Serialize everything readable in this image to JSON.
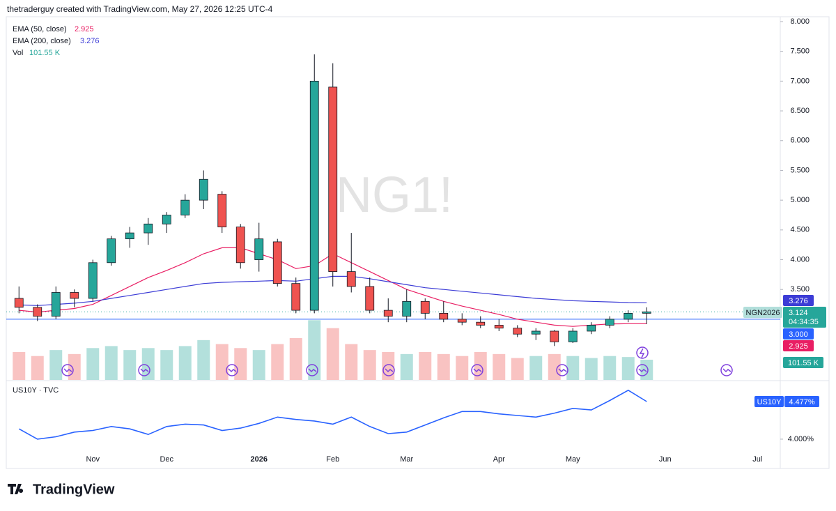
{
  "header": "thetraderguy created with TradingView.com, May 27, 2026 12:25 UTC-4",
  "brand": "TradingView",
  "chart_data": {
    "type": "candlestick",
    "watermark": "NG1!",
    "contract": "NGN2026",
    "countdown": "04:34:35",
    "categories": [
      null,
      null,
      null,
      null,
      "Nov",
      null,
      null,
      null,
      "Dec",
      null,
      null,
      null,
      null,
      "2026",
      null,
      null,
      null,
      "Feb",
      null,
      null,
      null,
      "Mar",
      null,
      null,
      null,
      null,
      "Apr",
      null,
      null,
      null,
      "May",
      null,
      null,
      null,
      null,
      "Jun",
      null,
      null,
      null,
      null,
      "Jul"
    ],
    "open": [
      3.35,
      3.2,
      3.05,
      3.45,
      3.35,
      3.95,
      4.35,
      4.45,
      4.6,
      4.75,
      5.0,
      5.1,
      4.55,
      4.0,
      4.3,
      3.6,
      3.15,
      6.9,
      3.8,
      3.55,
      3.15,
      3.05,
      3.3,
      3.1,
      3.0,
      2.95,
      2.9,
      2.85,
      2.75,
      2.8,
      2.62,
      2.8,
      2.9,
      3.0,
      3.1,
      null,
      null,
      null,
      null,
      null,
      null
    ],
    "high": [
      3.55,
      3.25,
      3.55,
      3.5,
      4.0,
      4.4,
      4.55,
      4.7,
      4.8,
      5.1,
      5.5,
      5.15,
      4.6,
      4.62,
      4.35,
      3.7,
      7.45,
      7.3,
      4.45,
      3.7,
      3.35,
      3.5,
      3.35,
      3.3,
      3.1,
      3.05,
      3.0,
      2.9,
      2.85,
      2.82,
      2.85,
      2.95,
      3.05,
      3.15,
      3.2,
      null,
      null,
      null,
      null,
      null,
      null
    ],
    "low": [
      3.1,
      2.97,
      3.0,
      3.2,
      3.3,
      3.9,
      4.2,
      4.25,
      4.45,
      4.7,
      4.85,
      4.45,
      3.85,
      3.8,
      3.55,
      3.1,
      3.1,
      3.55,
      3.45,
      3.1,
      2.95,
      2.95,
      3.0,
      2.95,
      2.9,
      2.85,
      2.8,
      2.7,
      2.65,
      2.55,
      2.6,
      2.75,
      2.85,
      2.95,
      2.92,
      null,
      null,
      null,
      null,
      null,
      null
    ],
    "close": [
      3.2,
      3.05,
      3.45,
      3.35,
      3.95,
      4.35,
      4.45,
      4.6,
      4.75,
      5.0,
      5.35,
      4.55,
      3.95,
      4.35,
      3.6,
      3.15,
      7.0,
      3.8,
      3.55,
      3.15,
      3.05,
      3.3,
      3.1,
      3.0,
      2.95,
      2.9,
      2.85,
      2.75,
      2.8,
      2.62,
      2.8,
      2.9,
      3.0,
      3.1,
      3.124,
      null,
      null,
      null,
      null,
      null,
      null
    ],
    "up_color": "#26a69a",
    "down_color": "#ef5350",
    "ylim": [
      1.98,
      8.07
    ],
    "yticks": [
      {
        "value": 3.5,
        "label": "3.500"
      },
      {
        "value": 4,
        "label": "4.000"
      },
      {
        "value": 4.5,
        "label": "4.500"
      },
      {
        "value": 5,
        "label": "5.000"
      },
      {
        "value": 5.5,
        "label": "5.500"
      },
      {
        "value": 6,
        "label": "6.000"
      },
      {
        "value": 6.5,
        "label": "6.500"
      },
      {
        "value": 7,
        "label": "7.000"
      },
      {
        "value": 7.5,
        "label": "7.500"
      },
      {
        "value": 8,
        "label": "8.000"
      }
    ],
    "price_line": {
      "value": 3,
      "label": "3.000",
      "color": "#2962ff"
    },
    "series": [
      {
        "name": "EMA (50, close)",
        "color": "#e91e63",
        "values": [
          3.15,
          3.12,
          3.15,
          3.18,
          3.25,
          3.4,
          3.55,
          3.7,
          3.82,
          3.95,
          4.1,
          4.2,
          4.2,
          4.1,
          4.0,
          3.85,
          3.9,
          4.1,
          3.95,
          3.8,
          3.65,
          3.5,
          3.4,
          3.3,
          3.22,
          3.15,
          3.08,
          3.0,
          2.95,
          2.9,
          2.88,
          2.9,
          2.92,
          2.925,
          2.925,
          null,
          null,
          null,
          null,
          null,
          null
        ]
      },
      {
        "name": "EMA (200, close)",
        "color": "#3c3cd6",
        "values": [
          3.24,
          3.23,
          3.25,
          3.27,
          3.3,
          3.35,
          3.4,
          3.45,
          3.5,
          3.55,
          3.6,
          3.62,
          3.63,
          3.64,
          3.65,
          3.64,
          3.68,
          3.72,
          3.72,
          3.68,
          3.63,
          3.58,
          3.53,
          3.5,
          3.47,
          3.44,
          3.41,
          3.38,
          3.35,
          3.33,
          3.31,
          3.3,
          3.29,
          3.28,
          3.276,
          null,
          null,
          null,
          null,
          null,
          null
        ]
      }
    ],
    "volume": {
      "name": "Vol",
      "last_label": "101.55 K",
      "color": "#26a69a",
      "ylim": [
        0,
        350
      ],
      "values": [
        140,
        120,
        150,
        130,
        160,
        170,
        150,
        160,
        150,
        170,
        200,
        180,
        160,
        150,
        180,
        210,
        300,
        260,
        180,
        150,
        140,
        130,
        140,
        130,
        120,
        140,
        130,
        110,
        120,
        130,
        120,
        110,
        120,
        115,
        101.55,
        null,
        null,
        null,
        null,
        null,
        null
      ]
    },
    "us10y": {
      "name": "US10Y",
      "title": "US10Y · TVC",
      "color": "#2962ff",
      "last_label": "4.477%",
      "ylim": [
        3.646,
        4.68
      ],
      "yticks": [
        {
          "value": 4,
          "label": "4.000%"
        }
      ],
      "values": [
        4.13,
        4.0,
        4.03,
        4.09,
        4.11,
        4.16,
        4.13,
        4.06,
        4.16,
        4.19,
        4.18,
        4.11,
        4.14,
        4.2,
        4.28,
        4.25,
        4.23,
        4.19,
        4.28,
        4.16,
        4.07,
        4.09,
        4.18,
        4.27,
        4.35,
        4.35,
        4.32,
        4.3,
        4.28,
        4.33,
        4.39,
        4.37,
        4.49,
        4.62,
        4.477,
        null,
        null,
        null,
        null,
        null,
        null
      ]
    }
  }
}
